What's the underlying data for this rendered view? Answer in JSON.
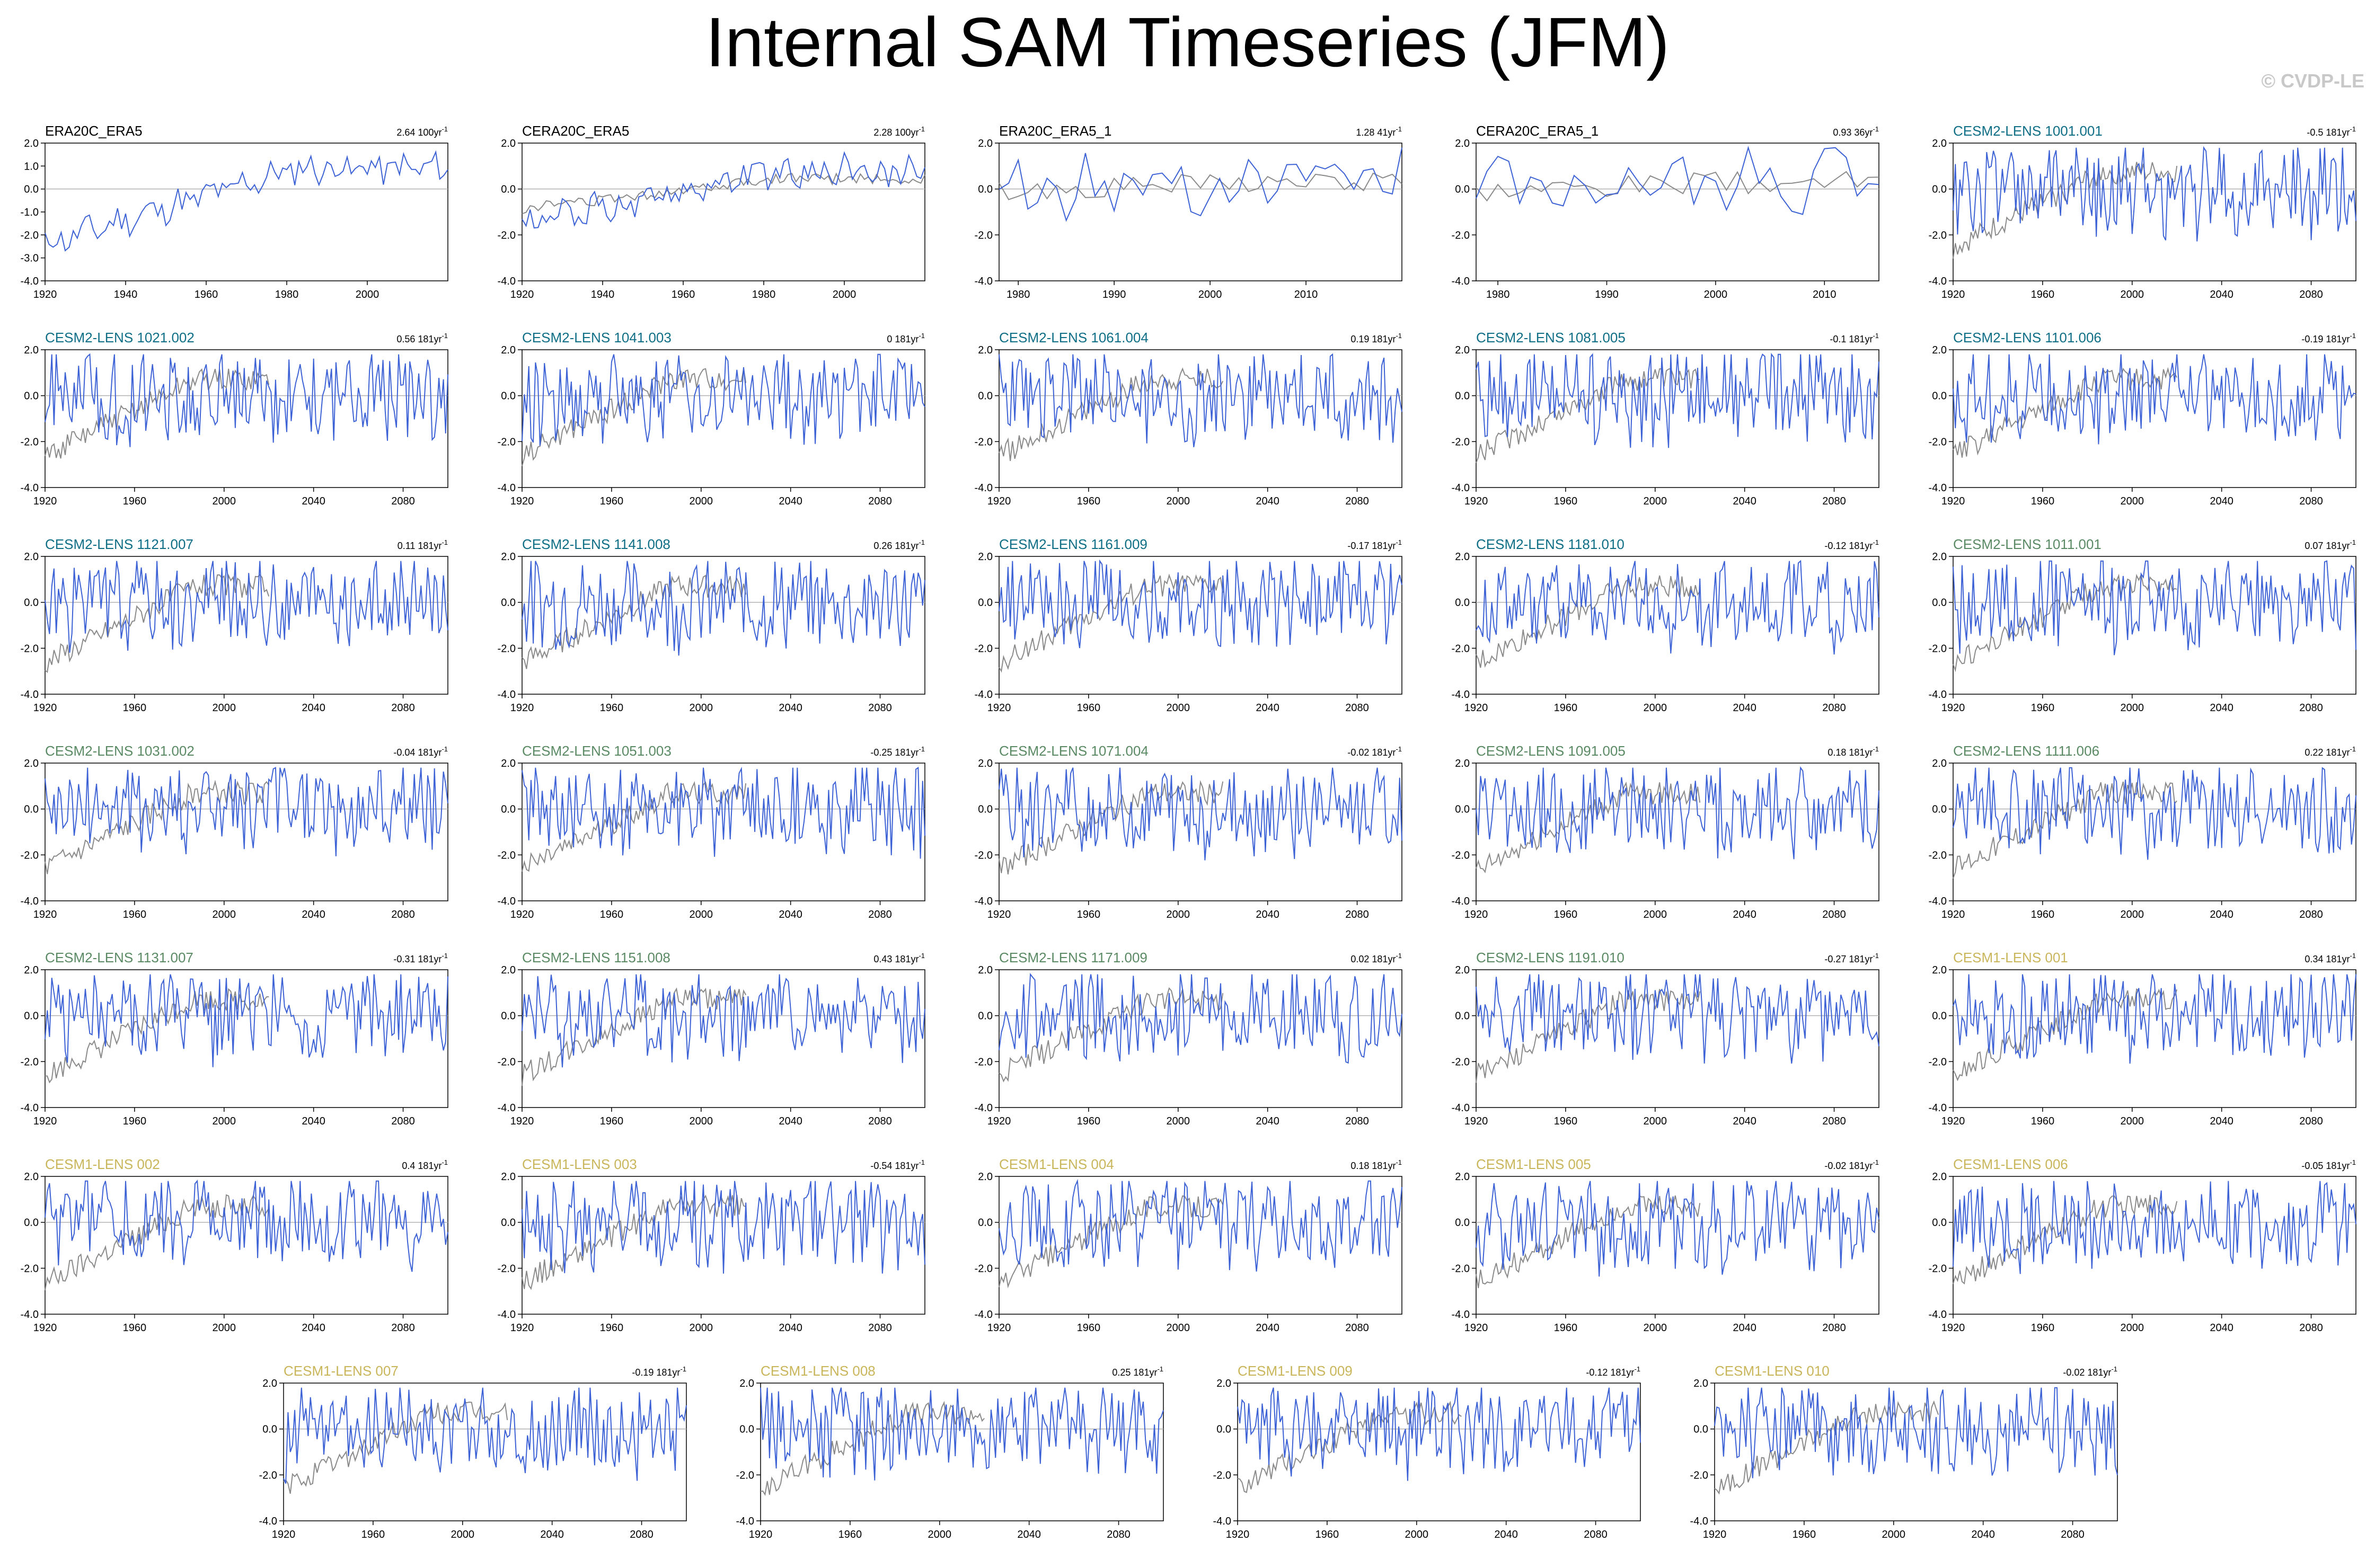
{
  "title": "Internal SAM Timeseries (JFM)",
  "watermark": "© CVDP-LE",
  "colors": {
    "model": "#3d62d6",
    "observation": "#8a8a8a",
    "zero_line": "#b0b0b0",
    "title_obs": "#000000",
    "title_cesm2_cmip6": "#0e6e86",
    "title_cesm2_smbb": "#5a8a64",
    "title_cesm1": "#c9b55a"
  },
  "chart_data": [
    {
      "type": "line",
      "title": "ERA20C_ERA5",
      "trend_label": "2.64 100yr",
      "title_color": "title_obs",
      "xlim": [
        1920,
        2020
      ],
      "ylim": [
        -4,
        2
      ],
      "yticks": [
        -4,
        -3,
        -2,
        -1,
        0,
        1,
        2
      ],
      "xtick_values": [
        1920,
        1940,
        1960,
        1980,
        2000
      ],
      "series_stats": {
        "start": -2.4,
        "end": 0.9,
        "amp": 0.6,
        "seed": 11,
        "show_obs": false
      }
    },
    {
      "type": "line",
      "title": "CERA20C_ERA5",
      "trend_label": "2.28 100yr",
      "title_color": "title_obs",
      "xlim": [
        1920,
        2020
      ],
      "ylim": [
        -4,
        2
      ],
      "yticks": [
        -4,
        -2,
        0,
        2
      ],
      "xtick_values": [
        1920,
        1940,
        1960,
        1980,
        2000
      ],
      "series_stats": {
        "start": -1.6,
        "end": 0.8,
        "amp": 0.6,
        "seed": 12,
        "show_obs": true
      }
    },
    {
      "type": "line",
      "title": "ERA20C_ERA5_1",
      "trend_label": "1.28 41yr",
      "title_color": "title_obs",
      "xlim": [
        1978,
        2020
      ],
      "ylim": [
        -4,
        2
      ],
      "yticks": [
        -4,
        -2,
        0,
        2
      ],
      "xtick_values": [
        1980,
        1990,
        2000,
        2010
      ],
      "series_stats": {
        "start": -0.2,
        "end": 0.5,
        "amp": 1.2,
        "seed": 13,
        "show_obs": true
      }
    },
    {
      "type": "line",
      "title": "CERA20C_ERA5_1",
      "trend_label": "0.93 36yr",
      "title_color": "title_obs",
      "xlim": [
        1978,
        2015
      ],
      "ylim": [
        -4,
        2
      ],
      "yticks": [
        -4,
        -2,
        0,
        2
      ],
      "xtick_values": [
        1980,
        1990,
        2000,
        2010
      ],
      "series_stats": {
        "start": -0.2,
        "end": 0.5,
        "amp": 1.2,
        "seed": 14,
        "show_obs": true
      }
    },
    {
      "type": "line",
      "title": "CESM2-LENS 1001.001",
      "trend_label": "-0.5 181yr",
      "title_color": "title_cesm2_cmip6",
      "xlim": [
        1920,
        2100
      ],
      "ylim": [
        -4,
        2
      ],
      "yticks": [
        -4,
        -2,
        0,
        2
      ],
      "xtick_values": [
        1920,
        1960,
        2000,
        2040,
        2080
      ],
      "series_stats": {
        "seed": 15,
        "show_obs": true
      }
    },
    {
      "type": "line",
      "title": "CESM2-LENS 1021.002",
      "trend_label": "0.56 181yr",
      "title_color": "title_cesm2_cmip6",
      "xlim": [
        1920,
        2100
      ],
      "ylim": [
        -4,
        2
      ],
      "yticks": [
        -4,
        -2,
        0,
        2
      ],
      "xtick_values": [
        1920,
        1960,
        2000,
        2040,
        2080
      ],
      "series_stats": {
        "seed": 21,
        "show_obs": true
      }
    },
    {
      "type": "line",
      "title": "CESM2-LENS 1041.003",
      "trend_label": "0 181yr",
      "title_color": "title_cesm2_cmip6",
      "xlim": [
        1920,
        2100
      ],
      "ylim": [
        -4,
        2
      ],
      "yticks": [
        -4,
        -2,
        0,
        2
      ],
      "xtick_values": [
        1920,
        1960,
        2000,
        2040,
        2080
      ],
      "series_stats": {
        "seed": 22,
        "show_obs": true
      }
    },
    {
      "type": "line",
      "title": "CESM2-LENS 1061.004",
      "trend_label": "0.19 181yr",
      "title_color": "title_cesm2_cmip6",
      "xlim": [
        1920,
        2100
      ],
      "ylim": [
        -4,
        2
      ],
      "yticks": [
        -4,
        -2,
        0,
        2
      ],
      "xtick_values": [
        1920,
        1960,
        2000,
        2040,
        2080
      ],
      "series_stats": {
        "seed": 23,
        "show_obs": true
      }
    },
    {
      "type": "line",
      "title": "CESM2-LENS 1081.005",
      "trend_label": "-0.1 181yr",
      "title_color": "title_cesm2_cmip6",
      "xlim": [
        1920,
        2100
      ],
      "ylim": [
        -4,
        2
      ],
      "yticks": [
        -4,
        -2,
        0,
        2
      ],
      "xtick_values": [
        1920,
        1960,
        2000,
        2040,
        2080
      ],
      "series_stats": {
        "seed": 24,
        "show_obs": true
      }
    },
    {
      "type": "line",
      "title": "CESM2-LENS 1101.006",
      "trend_label": "-0.19 181yr",
      "title_color": "title_cesm2_cmip6",
      "xlim": [
        1920,
        2100
      ],
      "ylim": [
        -4,
        2
      ],
      "yticks": [
        -4,
        -2,
        0,
        2
      ],
      "xtick_values": [
        1920,
        1960,
        2000,
        2040,
        2080
      ],
      "series_stats": {
        "seed": 25,
        "show_obs": true
      }
    },
    {
      "type": "line",
      "title": "CESM2-LENS 1121.007",
      "trend_label": "0.11 181yr",
      "title_color": "title_cesm2_cmip6",
      "xlim": [
        1920,
        2100
      ],
      "ylim": [
        -4,
        2
      ],
      "yticks": [
        -4,
        -2,
        0,
        2
      ],
      "xtick_values": [
        1920,
        1960,
        2000,
        2040,
        2080
      ],
      "series_stats": {
        "seed": 31,
        "show_obs": true
      }
    },
    {
      "type": "line",
      "title": "CESM2-LENS 1141.008",
      "trend_label": "0.26 181yr",
      "title_color": "title_cesm2_cmip6",
      "xlim": [
        1920,
        2100
      ],
      "ylim": [
        -4,
        2
      ],
      "yticks": [
        -4,
        -2,
        0,
        2
      ],
      "xtick_values": [
        1920,
        1960,
        2000,
        2040,
        2080
      ],
      "series_stats": {
        "seed": 32,
        "show_obs": true
      }
    },
    {
      "type": "line",
      "title": "CESM2-LENS 1161.009",
      "trend_label": "-0.17 181yr",
      "title_color": "title_cesm2_cmip6",
      "xlim": [
        1920,
        2100
      ],
      "ylim": [
        -4,
        2
      ],
      "yticks": [
        -4,
        -2,
        0,
        2
      ],
      "xtick_values": [
        1920,
        1960,
        2000,
        2040,
        2080
      ],
      "series_stats": {
        "seed": 33,
        "show_obs": true
      }
    },
    {
      "type": "line",
      "title": "CESM2-LENS 1181.010",
      "trend_label": "-0.12 181yr",
      "title_color": "title_cesm2_cmip6",
      "xlim": [
        1920,
        2100
      ],
      "ylim": [
        -4,
        2
      ],
      "yticks": [
        -4,
        -2,
        0,
        2
      ],
      "xtick_values": [
        1920,
        1960,
        2000,
        2040,
        2080
      ],
      "series_stats": {
        "seed": 34,
        "show_obs": true
      }
    },
    {
      "type": "line",
      "title": "CESM2-LENS 1011.001",
      "trend_label": "0.07 181yr",
      "title_color": "title_cesm2_smbb",
      "xlim": [
        1920,
        2100
      ],
      "ylim": [
        -4,
        2
      ],
      "yticks": [
        -4,
        -2,
        0,
        2
      ],
      "xtick_values": [
        1920,
        1960,
        2000,
        2040,
        2080
      ],
      "series_stats": {
        "seed": 35,
        "show_obs": true
      }
    },
    {
      "type": "line",
      "title": "CESM2-LENS 1031.002",
      "trend_label": "-0.04 181yr",
      "title_color": "title_cesm2_smbb",
      "xlim": [
        1920,
        2100
      ],
      "ylim": [
        -4,
        2
      ],
      "yticks": [
        -4,
        -2,
        0,
        2
      ],
      "xtick_values": [
        1920,
        1960,
        2000,
        2040,
        2080
      ],
      "series_stats": {
        "seed": 41,
        "show_obs": true
      }
    },
    {
      "type": "line",
      "title": "CESM2-LENS 1051.003",
      "trend_label": "-0.25 181yr",
      "title_color": "title_cesm2_smbb",
      "xlim": [
        1920,
        2100
      ],
      "ylim": [
        -4,
        2
      ],
      "yticks": [
        -4,
        -2,
        0,
        2
      ],
      "xtick_values": [
        1920,
        1960,
        2000,
        2040,
        2080
      ],
      "series_stats": {
        "seed": 42,
        "show_obs": true
      }
    },
    {
      "type": "line",
      "title": "CESM2-LENS 1071.004",
      "trend_label": "-0.02 181yr",
      "title_color": "title_cesm2_smbb",
      "xlim": [
        1920,
        2100
      ],
      "ylim": [
        -4,
        2
      ],
      "yticks": [
        -4,
        -2,
        0,
        2
      ],
      "xtick_values": [
        1920,
        1960,
        2000,
        2040,
        2080
      ],
      "series_stats": {
        "seed": 43,
        "show_obs": true
      }
    },
    {
      "type": "line",
      "title": "CESM2-LENS 1091.005",
      "trend_label": "0.18 181yr",
      "title_color": "title_cesm2_smbb",
      "xlim": [
        1920,
        2100
      ],
      "ylim": [
        -4,
        2
      ],
      "yticks": [
        -4,
        -2,
        0,
        2
      ],
      "xtick_values": [
        1920,
        1960,
        2000,
        2040,
        2080
      ],
      "series_stats": {
        "seed": 44,
        "show_obs": true
      }
    },
    {
      "type": "line",
      "title": "CESM2-LENS 1111.006",
      "trend_label": "0.22 181yr",
      "title_color": "title_cesm2_smbb",
      "xlim": [
        1920,
        2100
      ],
      "ylim": [
        -4,
        2
      ],
      "yticks": [
        -4,
        -2,
        0,
        2
      ],
      "xtick_values": [
        1920,
        1960,
        2000,
        2040,
        2080
      ],
      "series_stats": {
        "seed": 45,
        "show_obs": true
      }
    },
    {
      "type": "line",
      "title": "CESM2-LENS 1131.007",
      "trend_label": "-0.31 181yr",
      "title_color": "title_cesm2_smbb",
      "xlim": [
        1920,
        2100
      ],
      "ylim": [
        -4,
        2
      ],
      "yticks": [
        -4,
        -2,
        0,
        2
      ],
      "xtick_values": [
        1920,
        1960,
        2000,
        2040,
        2080
      ],
      "series_stats": {
        "seed": 51,
        "show_obs": true
      }
    },
    {
      "type": "line",
      "title": "CESM2-LENS 1151.008",
      "trend_label": "0.43 181yr",
      "title_color": "title_cesm2_smbb",
      "xlim": [
        1920,
        2100
      ],
      "ylim": [
        -4,
        2
      ],
      "yticks": [
        -4,
        -2,
        0,
        2
      ],
      "xtick_values": [
        1920,
        1960,
        2000,
        2040,
        2080
      ],
      "series_stats": {
        "seed": 52,
        "show_obs": true
      }
    },
    {
      "type": "line",
      "title": "CESM2-LENS 1171.009",
      "trend_label": "0.02 181yr",
      "title_color": "title_cesm2_smbb",
      "xlim": [
        1920,
        2100
      ],
      "ylim": [
        -4,
        2
      ],
      "yticks": [
        -4,
        -2,
        0,
        2
      ],
      "xtick_values": [
        1920,
        1960,
        2000,
        2040,
        2080
      ],
      "series_stats": {
        "seed": 53,
        "show_obs": true
      }
    },
    {
      "type": "line",
      "title": "CESM2-LENS 1191.010",
      "trend_label": "-0.27 181yr",
      "title_color": "title_cesm2_smbb",
      "xlim": [
        1920,
        2100
      ],
      "ylim": [
        -4,
        2
      ],
      "yticks": [
        -4,
        -2,
        0,
        2
      ],
      "xtick_values": [
        1920,
        1960,
        2000,
        2040,
        2080
      ],
      "series_stats": {
        "seed": 54,
        "show_obs": true
      }
    },
    {
      "type": "line",
      "title": "CESM1-LENS 001",
      "trend_label": "0.34 181yr",
      "title_color": "title_cesm1",
      "xlim": [
        1920,
        2100
      ],
      "ylim": [
        -4,
        2
      ],
      "yticks": [
        -4,
        -2,
        0,
        2
      ],
      "xtick_values": [
        1920,
        1960,
        2000,
        2040,
        2080
      ],
      "series_stats": {
        "seed": 55,
        "show_obs": true
      }
    },
    {
      "type": "line",
      "title": "CESM1-LENS 002",
      "trend_label": "0.4 181yr",
      "title_color": "title_cesm1",
      "xlim": [
        1920,
        2100
      ],
      "ylim": [
        -4,
        2
      ],
      "yticks": [
        -4,
        -2,
        0,
        2
      ],
      "xtick_values": [
        1920,
        1960,
        2000,
        2040,
        2080
      ],
      "series_stats": {
        "seed": 61,
        "show_obs": true
      }
    },
    {
      "type": "line",
      "title": "CESM1-LENS 003",
      "trend_label": "-0.54 181yr",
      "title_color": "title_cesm1",
      "xlim": [
        1920,
        2100
      ],
      "ylim": [
        -4,
        2
      ],
      "yticks": [
        -4,
        -2,
        0,
        2
      ],
      "xtick_values": [
        1920,
        1960,
        2000,
        2040,
        2080
      ],
      "series_stats": {
        "seed": 62,
        "show_obs": true
      }
    },
    {
      "type": "line",
      "title": "CESM1-LENS 004",
      "trend_label": "0.18 181yr",
      "title_color": "title_cesm1",
      "xlim": [
        1920,
        2100
      ],
      "ylim": [
        -4,
        2
      ],
      "yticks": [
        -4,
        -2,
        0,
        2
      ],
      "xtick_values": [
        1920,
        1960,
        2000,
        2040,
        2080
      ],
      "series_stats": {
        "seed": 63,
        "show_obs": true
      }
    },
    {
      "type": "line",
      "title": "CESM1-LENS 005",
      "trend_label": "-0.02 181yr",
      "title_color": "title_cesm1",
      "xlim": [
        1920,
        2100
      ],
      "ylim": [
        -4,
        2
      ],
      "yticks": [
        -4,
        -2,
        0,
        2
      ],
      "xtick_values": [
        1920,
        1960,
        2000,
        2040,
        2080
      ],
      "series_stats": {
        "seed": 64,
        "show_obs": true
      }
    },
    {
      "type": "line",
      "title": "CESM1-LENS 006",
      "trend_label": "-0.05 181yr",
      "title_color": "title_cesm1",
      "xlim": [
        1920,
        2100
      ],
      "ylim": [
        -4,
        2
      ],
      "yticks": [
        -4,
        -2,
        0,
        2
      ],
      "xtick_values": [
        1920,
        1960,
        2000,
        2040,
        2080
      ],
      "series_stats": {
        "seed": 65,
        "show_obs": true
      }
    },
    {
      "type": "line",
      "title": "CESM1-LENS 007",
      "trend_label": "-0.19 181yr",
      "title_color": "title_cesm1",
      "xlim": [
        1920,
        2100
      ],
      "ylim": [
        -4,
        2
      ],
      "yticks": [
        -4,
        -2,
        0,
        2
      ],
      "xtick_values": [
        1920,
        1960,
        2000,
        2040,
        2080
      ],
      "series_stats": {
        "seed": 71,
        "show_obs": true
      }
    },
    {
      "type": "line",
      "title": "CESM1-LENS 008",
      "trend_label": "0.25 181yr",
      "title_color": "title_cesm1",
      "xlim": [
        1920,
        2100
      ],
      "ylim": [
        -4,
        2
      ],
      "yticks": [
        -4,
        -2,
        0,
        2
      ],
      "xtick_values": [
        1920,
        1960,
        2000,
        2040,
        2080
      ],
      "series_stats": {
        "seed": 72,
        "show_obs": true
      }
    },
    {
      "type": "line",
      "title": "CESM1-LENS 009",
      "trend_label": "-0.12 181yr",
      "title_color": "title_cesm1",
      "xlim": [
        1920,
        2100
      ],
      "ylim": [
        -4,
        2
      ],
      "yticks": [
        -4,
        -2,
        0,
        2
      ],
      "xtick_values": [
        1920,
        1960,
        2000,
        2040,
        2080
      ],
      "series_stats": {
        "seed": 73,
        "show_obs": true
      }
    },
    {
      "type": "line",
      "title": "CESM1-LENS 010",
      "trend_label": "-0.02 181yr",
      "title_color": "title_cesm1",
      "xlim": [
        1920,
        2100
      ],
      "ylim": [
        -4,
        2
      ],
      "yticks": [
        -4,
        -2,
        0,
        2
      ],
      "xtick_values": [
        1920,
        1960,
        2000,
        2040,
        2080
      ],
      "series_stats": {
        "seed": 74,
        "show_obs": true
      }
    }
  ]
}
